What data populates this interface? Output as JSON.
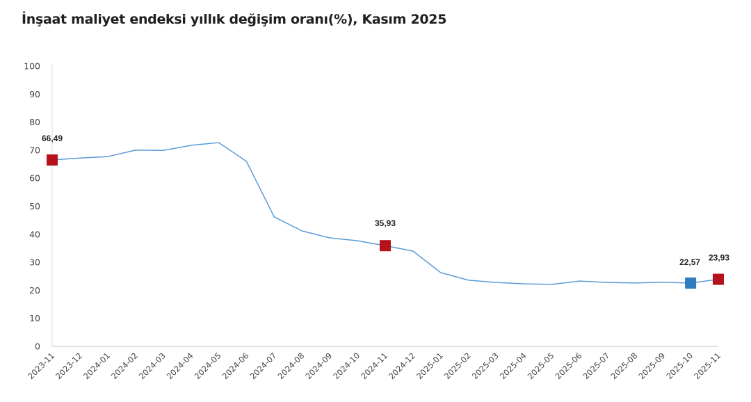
{
  "chart_data": {
    "type": "line",
    "title": "İnşaat maliyet endeksi yıllık değişim oranı(%), Kasım 2025",
    "xlabel": "",
    "ylabel": "",
    "ylim": [
      0,
      100
    ],
    "yticks": [
      0,
      10,
      20,
      30,
      40,
      50,
      60,
      70,
      80,
      90,
      100
    ],
    "grid": false,
    "legend": null,
    "categories": [
      "2023-11",
      "2023-12",
      "2024-01",
      "2024-02",
      "2024-03",
      "2024-04",
      "2024-05",
      "2024-06",
      "2024-07",
      "2024-08",
      "2024-09",
      "2024-10",
      "2024-11",
      "2024-12",
      "2025-01",
      "2025-02",
      "2025-03",
      "2025-04",
      "2025-05",
      "2025-06",
      "2025-07",
      "2025-08",
      "2025-09",
      "2025-10",
      "2025-11"
    ],
    "series": [
      {
        "name": "Yıllık değişim oranı (%)",
        "color": "#5b9bd5",
        "values": [
          66.49,
          67.2,
          67.7,
          70.0,
          69.9,
          71.7,
          72.7,
          66.0,
          46.2,
          41.2,
          38.7,
          37.7,
          35.93,
          34.0,
          26.3,
          23.6,
          22.8,
          22.3,
          22.1,
          23.3,
          22.8,
          22.6,
          22.9,
          22.57,
          23.93
        ]
      }
    ],
    "annotations": [
      {
        "category": "2023-11",
        "value": 66.49,
        "label": "66,49",
        "marker_color": "#b5121b"
      },
      {
        "category": "2024-11",
        "value": 35.93,
        "label": "35,93",
        "marker_color": "#b5121b"
      },
      {
        "category": "2025-10",
        "value": 22.57,
        "label": "22,57",
        "marker_color": "#2e7ebf"
      },
      {
        "category": "2025-11",
        "value": 23.93,
        "label": "23,93",
        "marker_color": "#b5121b"
      }
    ]
  },
  "page": {
    "title": "İnşaat maliyet endeksi yıllık değişim oranı(%), Kasım 2025"
  },
  "colors": {
    "line": "#5b9bd5",
    "highlight_red": "#b5121b",
    "highlight_blue": "#2e7ebf",
    "axis": "#d9d9d9"
  }
}
